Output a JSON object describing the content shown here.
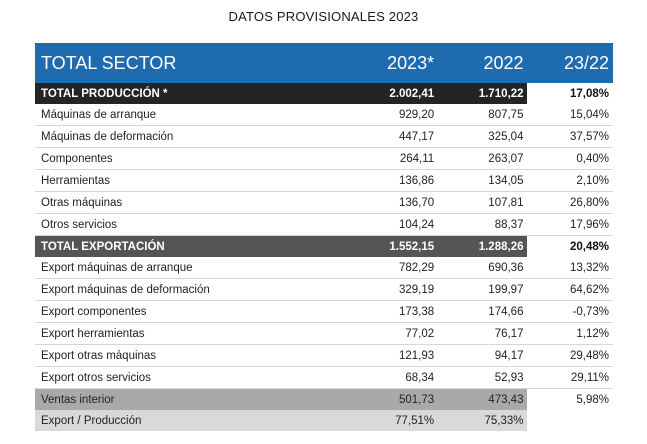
{
  "title": "DATOS PROVISIONALES 2023",
  "header": {
    "label": "TOTAL SECTOR",
    "col1": "2023*",
    "col2": "2022",
    "col3": "23/22"
  },
  "produccion": {
    "label": "TOTAL PRODUCCIÓN *",
    "v2023": "2.002,41",
    "v2022": "1.710,22",
    "pct": "17,08%",
    "rows": [
      {
        "label": "Máquinas de arranque",
        "v2023": "929,20",
        "v2022": "807,75",
        "pct": "15,04%"
      },
      {
        "label": "Máquinas de deformación",
        "v2023": "447,17",
        "v2022": "325,04",
        "pct": "37,57%"
      },
      {
        "label": "Componentes",
        "v2023": "264,11",
        "v2022": "263,07",
        "pct": "0,40%"
      },
      {
        "label": "Herramientas",
        "v2023": "136,86",
        "v2022": "134,05",
        "pct": "2,10%"
      },
      {
        "label": "Otras máquinas",
        "v2023": "136,70",
        "v2022": "107,81",
        "pct": "26,80%"
      },
      {
        "label": "Otros servicios",
        "v2023": "104,24",
        "v2022": "88,37",
        "pct": "17,96%"
      }
    ]
  },
  "exportacion": {
    "label": "TOTAL EXPORTACIÓN",
    "v2023": "1.552,15",
    "v2022": "1.288,26",
    "pct": "20,48%",
    "rows": [
      {
        "label": "Export máquinas de arranque",
        "v2023": "782,29",
        "v2022": "690,36",
        "pct": "13,32%"
      },
      {
        "label": "Export máquinas de deformación",
        "v2023": "329,19",
        "v2022": "199,97",
        "pct": "64,62%"
      },
      {
        "label": "Export componentes",
        "v2023": "173,38",
        "v2022": "174,66",
        "pct": "-0,73%"
      },
      {
        "label": "Export herramientas",
        "v2023": "77,02",
        "v2022": "76,17",
        "pct": "1,12%"
      },
      {
        "label": "Export otras máquinas",
        "v2023": "121,93",
        "v2022": "94,17",
        "pct": "29,48%"
      },
      {
        "label": "Export otros servicios",
        "v2023": "68,34",
        "v2022": "52,93",
        "pct": "29,11%"
      }
    ]
  },
  "ventas": {
    "label": "Ventas interior",
    "v2023": "501,73",
    "v2022": "473,43",
    "pct": "5,98%"
  },
  "export_produccion": {
    "label": "Export / Producción",
    "v2023": "77,51%",
    "v2022": "75,33%"
  }
}
